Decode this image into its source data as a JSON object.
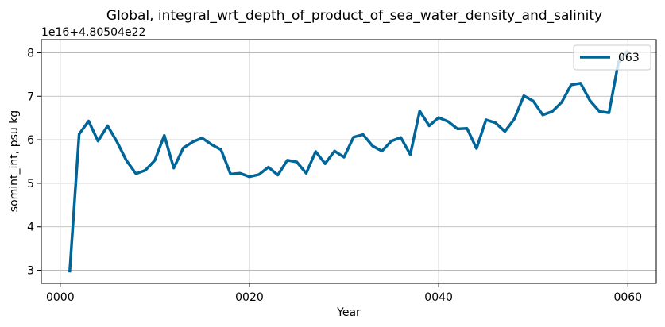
{
  "chart_data": {
    "type": "line",
    "title": "Global, integral_wrt_depth_of_product_of_sea_water_density_and_salinity",
    "offset_text": "1e16+4.80504e22",
    "xlabel": "Year",
    "ylabel": "somint_int, psu kg",
    "xlim": [
      -2,
      63
    ],
    "ylim": [
      2.7,
      8.3
    ],
    "grid": true,
    "legend_position": "upper right",
    "x_ticks": [
      {
        "value": 0,
        "label": "0000"
      },
      {
        "value": 20,
        "label": "0020"
      },
      {
        "value": 40,
        "label": "0040"
      },
      {
        "value": 60,
        "label": "0060"
      }
    ],
    "y_ticks": [
      {
        "value": 3,
        "label": "3"
      },
      {
        "value": 4,
        "label": "4"
      },
      {
        "value": 5,
        "label": "5"
      },
      {
        "value": 6,
        "label": "6"
      },
      {
        "value": 7,
        "label": "7"
      },
      {
        "value": 8,
        "label": "8"
      }
    ],
    "series": [
      {
        "name": "063",
        "color": "#006699",
        "x": [
          1,
          2,
          3,
          4,
          5,
          6,
          7,
          8,
          9,
          10,
          11,
          12,
          13,
          14,
          15,
          16,
          17,
          18,
          19,
          20,
          21,
          22,
          23,
          24,
          25,
          26,
          27,
          28,
          29,
          30,
          31,
          32,
          33,
          34,
          35,
          36,
          37,
          38,
          39,
          40,
          41,
          42,
          43,
          44,
          45,
          46,
          47,
          48,
          49,
          50,
          51,
          52,
          53,
          54,
          55,
          56,
          57,
          58,
          59,
          60
        ],
        "values": [
          2.95,
          6.13,
          6.43,
          5.97,
          6.32,
          5.95,
          5.52,
          5.22,
          5.3,
          5.53,
          6.1,
          5.35,
          5.81,
          5.95,
          6.04,
          5.89,
          5.77,
          5.21,
          5.23,
          5.15,
          5.2,
          5.37,
          5.19,
          5.53,
          5.49,
          5.23,
          5.73,
          5.45,
          5.74,
          5.6,
          6.06,
          6.12,
          5.86,
          5.74,
          5.97,
          6.05,
          5.66,
          6.66,
          6.32,
          6.51,
          6.42,
          6.25,
          6.26,
          5.8,
          6.46,
          6.39,
          6.19,
          6.48,
          7.01,
          6.89,
          6.57,
          6.65,
          6.86,
          7.26,
          7.3,
          6.9,
          6.65,
          6.62,
          7.78,
          8.05
        ]
      }
    ]
  }
}
